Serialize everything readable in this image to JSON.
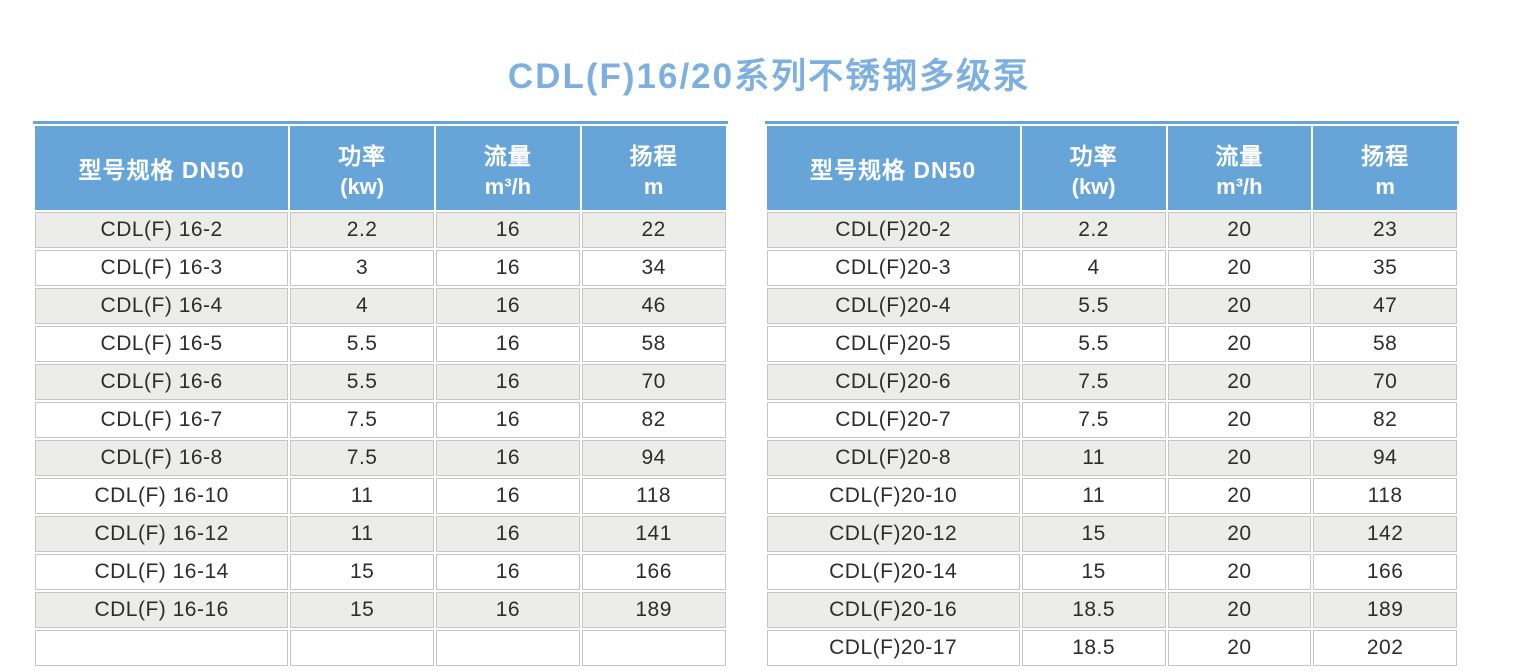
{
  "title": "CDL(F)16/20系列不锈钢多级泵",
  "colors": {
    "title_text": "#7db0de",
    "header_bg": "#67a5d9",
    "header_text": "#ffffff",
    "row_alt_bg": "#ececeb",
    "row_bg": "#ffffff",
    "cell_border": "#c6c6c6",
    "body_text": "#2f2d2c"
  },
  "tables": [
    {
      "headers": [
        {
          "line1": "型号规格 DN50",
          "line2": ""
        },
        {
          "line1": "功率",
          "line2": "(kw)"
        },
        {
          "line1": "流量",
          "line2": "m³/h"
        },
        {
          "line1": "扬程",
          "line2": "m"
        }
      ],
      "rows": [
        [
          "CDL(F) 16-2",
          "2.2",
          "16",
          "22"
        ],
        [
          "CDL(F) 16-3",
          "3",
          "16",
          "34"
        ],
        [
          "CDL(F) 16-4",
          "4",
          "16",
          "46"
        ],
        [
          "CDL(F) 16-5",
          "5.5",
          "16",
          "58"
        ],
        [
          "CDL(F) 16-6",
          "5.5",
          "16",
          "70"
        ],
        [
          "CDL(F) 16-7",
          "7.5",
          "16",
          "82"
        ],
        [
          "CDL(F) 16-8",
          "7.5",
          "16",
          "94"
        ],
        [
          "CDL(F) 16-10",
          "11",
          "16",
          "118"
        ],
        [
          "CDL(F) 16-12",
          "11",
          "16",
          "141"
        ],
        [
          "CDL(F) 16-14",
          "15",
          "16",
          "166"
        ],
        [
          "CDL(F) 16-16",
          "15",
          "16",
          "189"
        ],
        [
          "",
          "",
          "",
          ""
        ]
      ]
    },
    {
      "headers": [
        {
          "line1": "型号规格 DN50",
          "line2": ""
        },
        {
          "line1": "功率",
          "line2": "(kw)"
        },
        {
          "line1": "流量",
          "line2": "m³/h"
        },
        {
          "line1": "扬程",
          "line2": "m"
        }
      ],
      "rows": [
        [
          "CDL(F)20-2",
          "2.2",
          "20",
          "23"
        ],
        [
          "CDL(F)20-3",
          "4",
          "20",
          "35"
        ],
        [
          "CDL(F)20-4",
          "5.5",
          "20",
          "47"
        ],
        [
          "CDL(F)20-5",
          "5.5",
          "20",
          "58"
        ],
        [
          "CDL(F)20-6",
          "7.5",
          "20",
          "70"
        ],
        [
          "CDL(F)20-7",
          "7.5",
          "20",
          "82"
        ],
        [
          "CDL(F)20-8",
          "11",
          "20",
          "94"
        ],
        [
          "CDL(F)20-10",
          "11",
          "20",
          "118"
        ],
        [
          "CDL(F)20-12",
          "15",
          "20",
          "142"
        ],
        [
          "CDL(F)20-14",
          "15",
          "20",
          "166"
        ],
        [
          "CDL(F)20-16",
          "18.5",
          "20",
          "189"
        ],
        [
          "CDL(F)20-17",
          "18.5",
          "20",
          "202"
        ]
      ]
    }
  ]
}
